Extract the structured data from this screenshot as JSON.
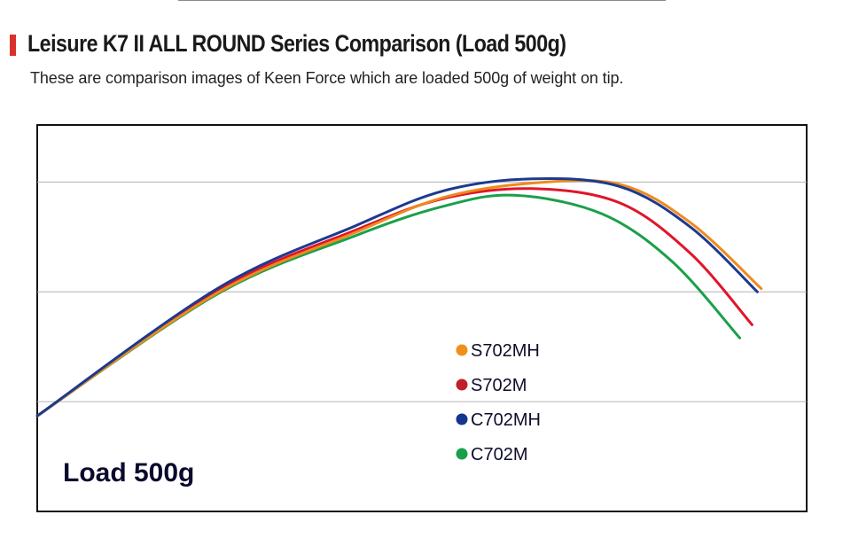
{
  "header": {
    "title": "Leisure K7 II ALL ROUND Series Comparison (Load 500g)",
    "subtitle": "These are comparison images of Keen Force which are loaded 500g of weight on tip.",
    "accent_color": "#d9322e"
  },
  "chart_data": {
    "type": "line",
    "title": "Leisure K7 II ALL ROUND Series Comparison (Load 500g)",
    "annotation": "Load 500g",
    "xlabel": "",
    "ylabel": "",
    "xlim": [
      0,
      100
    ],
    "ylim": [
      0,
      3.52
    ],
    "grid": true,
    "gridlines_y": [
      1,
      2,
      3
    ],
    "legend_position": "center",
    "series": [
      {
        "name": "S702MH",
        "color": "#ee8a1e",
        "x": [
          0,
          23.4,
          41.3,
          52.8,
          64.3,
          75.7,
          84.9,
          94.1
        ],
        "y": [
          0.87,
          1.99,
          2.54,
          2.86,
          2.99,
          2.98,
          2.63,
          2.03
        ]
      },
      {
        "name": "S702M",
        "color": "#e0152a",
        "x": [
          0,
          23.4,
          41.3,
          52.8,
          64.3,
          75.7,
          84.9,
          92.9
        ],
        "y": [
          0.87,
          2.01,
          2.56,
          2.85,
          2.94,
          2.81,
          2.35,
          1.7
        ]
      },
      {
        "name": "C702MH",
        "color": "#1c3a8f",
        "x": [
          0,
          23.4,
          41.3,
          52.8,
          64.3,
          75.7,
          84.9,
          93.6
        ],
        "y": [
          0.87,
          2.03,
          2.6,
          2.92,
          3.03,
          2.96,
          2.59,
          2.0
        ]
      },
      {
        "name": "C702M",
        "color": "#1aa04a",
        "x": [
          0,
          23.4,
          41.3,
          52.8,
          62.0,
          73.4,
          82.6,
          91.3
        ],
        "y": [
          0.87,
          1.98,
          2.51,
          2.78,
          2.88,
          2.71,
          2.27,
          1.58
        ]
      }
    ],
    "legend": [
      {
        "label": "S702MH",
        "color": "#f0901c"
      },
      {
        "label": "S702M",
        "color": "#c0202a"
      },
      {
        "label": "C702MH",
        "color": "#13358f"
      },
      {
        "label": "C702M",
        "color": "#17a049"
      }
    ]
  }
}
